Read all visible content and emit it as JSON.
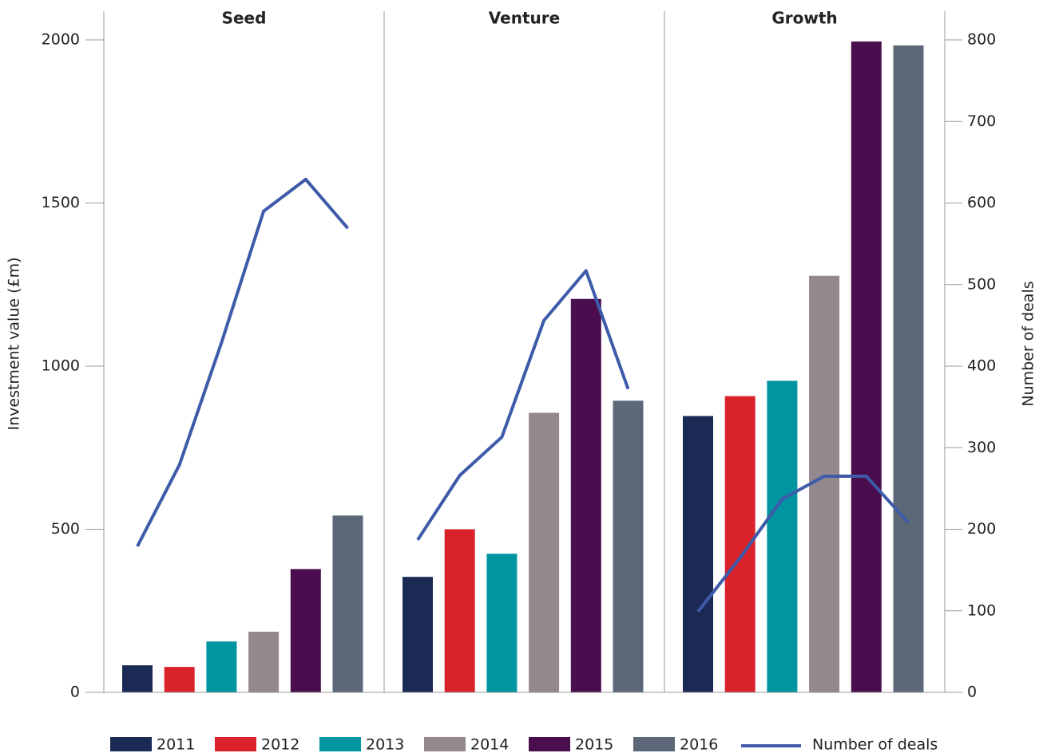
{
  "chart_data": {
    "type": "bar",
    "categories": [
      "Seed",
      "Venture",
      "Growth"
    ],
    "series": [
      {
        "name": "2011",
        "color": "#1b2a55",
        "values": [
          83,
          354,
          847
        ]
      },
      {
        "name": "2012",
        "color": "#d9222a",
        "values": [
          78,
          500,
          908
        ]
      },
      {
        "name": "2013",
        "color": "#0095a0",
        "values": [
          156,
          425,
          955
        ]
      },
      {
        "name": "2014",
        "color": "#94888f",
        "values": [
          186,
          857,
          1277
        ]
      },
      {
        "name": "2015",
        "color": "#4a0d4e",
        "values": [
          378,
          1206,
          1995
        ]
      },
      {
        "name": "2016",
        "color": "#5c6878",
        "values": [
          542,
          894,
          1983
        ]
      }
    ],
    "line": {
      "name": "Number of deals",
      "color": "#3d5ba9",
      "axis": "y2",
      "values": [
        [
          179,
          279,
          429,
          590,
          629,
          569
        ],
        [
          187,
          266,
          313,
          456,
          517,
          372
        ],
        [
          99,
          165,
          237,
          265,
          265,
          208
        ]
      ]
    },
    "ylabel": "Investment value (£m)",
    "y2label": "Number of deals",
    "ylim": [
      0,
      2000
    ],
    "yticks": [
      0,
      500,
      1000,
      1500,
      2000
    ],
    "y2lim": [
      0,
      800
    ],
    "y2ticks": [
      0,
      100,
      200,
      300,
      400,
      500,
      600,
      700,
      800
    ]
  }
}
